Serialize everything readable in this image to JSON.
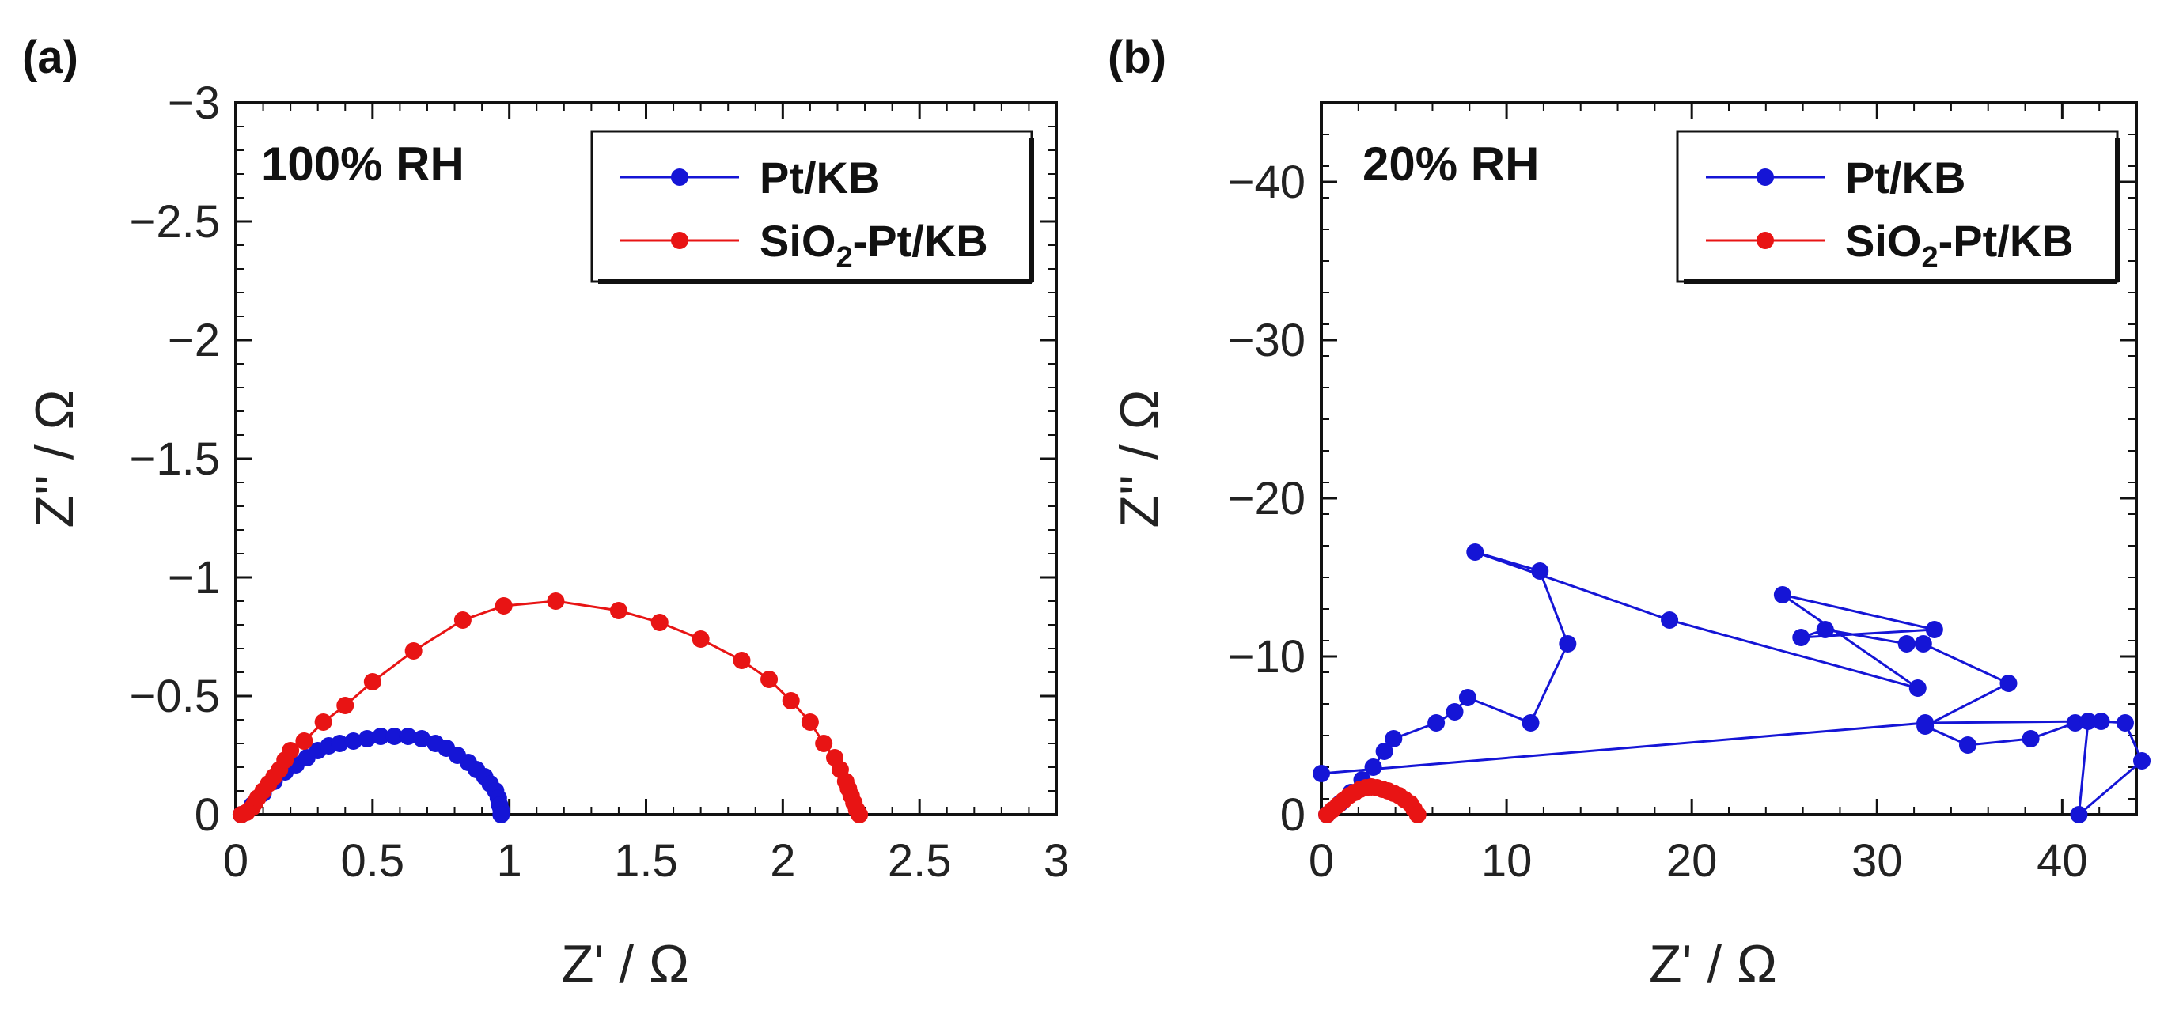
{
  "chart_data": [
    {
      "type": "scatter",
      "panel_label": "(a)",
      "condition": "100% RH",
      "xlabel": "Z' / Ω",
      "ylabel": "Z'' / Ω",
      "xlim": [
        0,
        3
      ],
      "ylim": [
        0,
        -3
      ],
      "xticks": [
        0,
        0.5,
        1,
        1.5,
        2,
        2.5,
        3
      ],
      "xtick_labels": [
        "0",
        "0.5",
        "1",
        "1.5",
        "2",
        "2.5",
        "3"
      ],
      "yticks": [
        0,
        -0.5,
        -1,
        -1.5,
        -2,
        -2.5,
        -3
      ],
      "ytick_labels": [
        "0",
        "−0.5",
        "−1",
        "−1.5",
        "−2",
        "−2.5",
        "−3"
      ],
      "legend": {
        "position": "top-right"
      },
      "series": [
        {
          "name": "Pt/KB",
          "name_main": "Pt/KB",
          "name_sub": "",
          "name_tail": "",
          "color": "#1515d6",
          "x": [
            0.02,
            0.06,
            0.1,
            0.14,
            0.18,
            0.22,
            0.26,
            0.3,
            0.34,
            0.38,
            0.43,
            0.48,
            0.53,
            0.58,
            0.63,
            0.68,
            0.73,
            0.77,
            0.81,
            0.85,
            0.88,
            0.91,
            0.93,
            0.95,
            0.96,
            0.965,
            0.97,
            0.97
          ],
          "y": [
            0.0,
            -0.04,
            -0.09,
            -0.14,
            -0.18,
            -0.21,
            -0.24,
            -0.27,
            -0.29,
            -0.3,
            -0.31,
            -0.32,
            -0.33,
            -0.33,
            -0.33,
            -0.32,
            -0.3,
            -0.28,
            -0.25,
            -0.22,
            -0.19,
            -0.16,
            -0.13,
            -0.1,
            -0.07,
            -0.04,
            -0.02,
            0.0
          ]
        },
        {
          "name": "SiO2-Pt/KB",
          "name_main": "SiO",
          "name_sub": "2",
          "name_tail": "-Pt/KB",
          "color": "#e81414",
          "x": [
            0.02,
            0.04,
            0.06,
            0.07,
            0.08,
            0.1,
            0.12,
            0.14,
            0.16,
            0.18,
            0.2,
            0.25,
            0.32,
            0.4,
            0.5,
            0.65,
            0.83,
            0.98,
            1.17,
            1.4,
            1.55,
            1.7,
            1.85,
            1.95,
            2.03,
            2.1,
            2.15,
            2.19,
            2.21,
            2.23,
            2.24,
            2.25,
            2.26,
            2.27,
            2.28
          ],
          "y": [
            0.0,
            -0.01,
            -0.03,
            -0.05,
            -0.07,
            -0.1,
            -0.13,
            -0.16,
            -0.19,
            -0.23,
            -0.27,
            -0.31,
            -0.39,
            -0.46,
            -0.56,
            -0.69,
            -0.82,
            -0.88,
            -0.9,
            -0.86,
            -0.81,
            -0.74,
            -0.65,
            -0.57,
            -0.48,
            -0.39,
            -0.3,
            -0.24,
            -0.19,
            -0.14,
            -0.11,
            -0.08,
            -0.05,
            -0.02,
            0.0
          ]
        }
      ]
    },
    {
      "type": "scatter",
      "panel_label": "(b)",
      "condition": "20% RH",
      "xlabel": "Z' / Ω",
      "ylabel": "Z'' / Ω",
      "xlim": [
        0,
        44
      ],
      "ylim": [
        0,
        -45
      ],
      "xticks": [
        0,
        10,
        20,
        30,
        40
      ],
      "xtick_labels": [
        "0",
        "10",
        "20",
        "30",
        "40"
      ],
      "yticks": [
        0,
        -10,
        -20,
        -30,
        -40
      ],
      "ytick_labels": [
        "0",
        "−10",
        "−20",
        "−30",
        "−40"
      ],
      "legend": {
        "position": "top-right"
      },
      "series": [
        {
          "name": "Pt/KB",
          "name_main": "Pt/KB",
          "name_sub": "",
          "name_tail": "",
          "color": "#1515d6",
          "x": [
            0.3,
            1.0,
            1.6,
            2.2,
            2.8,
            3.4,
            3.9,
            6.2,
            7.2,
            7.9,
            11.3,
            13.3,
            11.8,
            8.3,
            18.8,
            32.2,
            24.9,
            33.1,
            25.9,
            27.2,
            31.6,
            32.5,
            37.1,
            32.6,
            34.9,
            38.3,
            40.7,
            42.1,
            43.4,
            44.3,
            40.9,
            41.4,
            32.6,
            0.0
          ],
          "y": [
            0.0,
            -0.7,
            -1.4,
            -2.2,
            -3.0,
            -4.0,
            -4.8,
            -5.8,
            -6.5,
            -7.4,
            -5.8,
            -10.8,
            -15.4,
            -16.6,
            -12.3,
            -8.0,
            -13.9,
            -11.7,
            -11.2,
            -11.7,
            -10.8,
            -10.8,
            -8.3,
            -5.6,
            -4.4,
            -4.8,
            -5.8,
            -5.9,
            -5.8,
            -3.4,
            0.0,
            -5.9,
            -5.8,
            -2.6
          ]
        },
        {
          "name": "SiO2-Pt/KB",
          "name_main": "SiO",
          "name_sub": "2",
          "name_tail": "-Pt/KB",
          "color": "#e81414",
          "x": [
            0.3,
            0.6,
            0.9,
            1.2,
            1.5,
            1.8,
            2.1,
            2.4,
            2.7,
            3.0,
            3.3,
            3.6,
            3.9,
            4.2,
            4.5,
            4.8,
            5.0,
            5.2
          ],
          "y": [
            0.0,
            -0.3,
            -0.6,
            -0.9,
            -1.2,
            -1.4,
            -1.6,
            -1.7,
            -1.75,
            -1.7,
            -1.6,
            -1.5,
            -1.35,
            -1.2,
            -0.95,
            -0.7,
            -0.35,
            0.0
          ]
        }
      ]
    }
  ]
}
